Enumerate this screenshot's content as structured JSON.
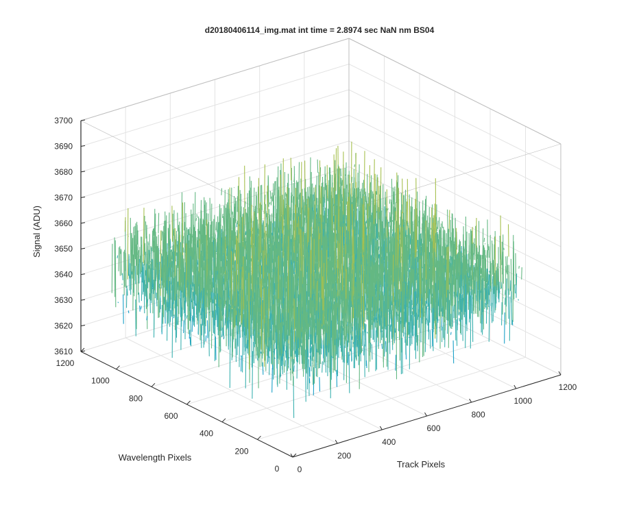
{
  "chart_data": {
    "type": "surface",
    "title": "d20180406114_img.mat int time = 2.8974 sec  NaN nm BS04",
    "xlabel": "Track Pixels",
    "ylabel": "Wavelength Pixels",
    "zlabel": "Signal (ADU)",
    "xlim": [
      0,
      1200
    ],
    "ylim": [
      0,
      1200
    ],
    "zlim": [
      3610,
      3700
    ],
    "x_ticks": [
      "0",
      "200",
      "400",
      "600",
      "800",
      "1000",
      "1200"
    ],
    "y_ticks": [
      "0",
      "200",
      "400",
      "600",
      "800",
      "1000",
      "1200"
    ],
    "z_ticks": [
      "3610",
      "3620",
      "3630",
      "3640",
      "3650",
      "3660",
      "3670",
      "3680",
      "3690",
      "3700"
    ],
    "data_extent": {
      "x": [
        0,
        1024
      ],
      "y": [
        0,
        1024
      ]
    },
    "signal_summary": {
      "mean": 3650,
      "min": 3610,
      "max": 3700,
      "noise": "random per-pixel noise"
    },
    "grid": true,
    "box": true,
    "colormap": [
      "#0072bd",
      "#1aa0c8",
      "#3bb1b0",
      "#64b883",
      "#a6c04f",
      "#e3b93a"
    ]
  }
}
